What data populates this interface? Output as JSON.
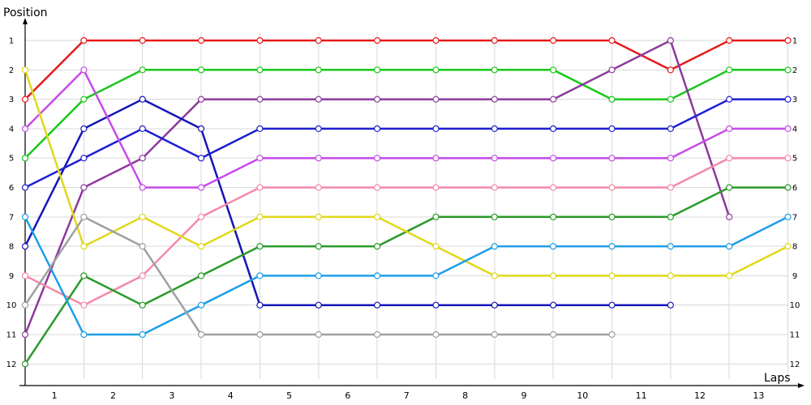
{
  "chart_data": {
    "type": "line",
    "ylabel": "Position",
    "xlabel": "Laps",
    "x_ticks": [
      "1",
      "2",
      "3",
      "4",
      "5",
      "6",
      "7",
      "8",
      "9",
      "10",
      "11",
      "12",
      "13"
    ],
    "y_ticks": [
      "1",
      "2",
      "3",
      "4",
      "5",
      "6",
      "7",
      "8",
      "9",
      "10",
      "11",
      "12"
    ],
    "ylim": [
      1,
      12
    ],
    "y_inverted": true,
    "grid": true,
    "series": [
      {
        "color": "#e8191a",
        "points": [
          [
            0,
            3
          ],
          [
            1,
            1
          ],
          [
            2,
            1
          ],
          [
            3,
            1
          ],
          [
            4,
            1
          ],
          [
            5,
            1
          ],
          [
            6,
            1
          ],
          [
            7,
            1
          ],
          [
            8,
            1
          ],
          [
            9,
            1
          ],
          [
            10,
            1
          ],
          [
            11,
            2
          ],
          [
            12,
            1
          ],
          [
            13,
            1
          ]
        ]
      },
      {
        "color": "#18c818",
        "points": [
          [
            0,
            5
          ],
          [
            1,
            3
          ],
          [
            2,
            2
          ],
          [
            3,
            2
          ],
          [
            4,
            2
          ],
          [
            5,
            2
          ],
          [
            6,
            2
          ],
          [
            7,
            2
          ],
          [
            8,
            2
          ],
          [
            9,
            2
          ],
          [
            10,
            3
          ],
          [
            11,
            3
          ],
          [
            12,
            2
          ],
          [
            13,
            2
          ]
        ]
      },
      {
        "color": "#8c3a9c",
        "points": [
          [
            0,
            11
          ],
          [
            1,
            6
          ],
          [
            2,
            5
          ],
          [
            3,
            3
          ],
          [
            4,
            3
          ],
          [
            5,
            3
          ],
          [
            6,
            3
          ],
          [
            7,
            3
          ],
          [
            8,
            3
          ],
          [
            9,
            3
          ],
          [
            10,
            2
          ],
          [
            11,
            1
          ],
          [
            12,
            7
          ]
        ]
      },
      {
        "color": "#1515b8",
        "points": [
          [
            0,
            8
          ],
          [
            1,
            4
          ],
          [
            2,
            3
          ],
          [
            3,
            4
          ],
          [
            4,
            10
          ],
          [
            5,
            10
          ],
          [
            6,
            10
          ],
          [
            7,
            10
          ],
          [
            8,
            10
          ],
          [
            9,
            10
          ],
          [
            10,
            10
          ],
          [
            11,
            10
          ]
        ]
      },
      {
        "color": "#1f1fd4",
        "points": [
          [
            0,
            6
          ],
          [
            1,
            5
          ],
          [
            2,
            4
          ],
          [
            3,
            5
          ],
          [
            4,
            4
          ],
          [
            5,
            4
          ],
          [
            6,
            4
          ],
          [
            7,
            4
          ],
          [
            8,
            4
          ],
          [
            9,
            4
          ],
          [
            10,
            4
          ],
          [
            11,
            4
          ],
          [
            12,
            3
          ],
          [
            13,
            3
          ]
        ]
      },
      {
        "color": "#c74ae8",
        "points": [
          [
            0,
            4
          ],
          [
            1,
            2
          ],
          [
            2,
            6
          ],
          [
            3,
            6
          ],
          [
            4,
            5
          ],
          [
            5,
            5
          ],
          [
            6,
            5
          ],
          [
            7,
            5
          ],
          [
            8,
            5
          ],
          [
            9,
            5
          ],
          [
            10,
            5
          ],
          [
            11,
            5
          ],
          [
            12,
            4
          ],
          [
            13,
            4
          ]
        ]
      },
      {
        "color": "#f48aa8",
        "points": [
          [
            0,
            9
          ],
          [
            1,
            10
          ],
          [
            2,
            9
          ],
          [
            3,
            7
          ],
          [
            4,
            6
          ],
          [
            5,
            6
          ],
          [
            6,
            6
          ],
          [
            7,
            6
          ],
          [
            8,
            6
          ],
          [
            9,
            6
          ],
          [
            10,
            6
          ],
          [
            11,
            6
          ],
          [
            12,
            5
          ],
          [
            13,
            5
          ]
        ]
      },
      {
        "color": "#2a9a2a",
        "points": [
          [
            0,
            12
          ],
          [
            1,
            9
          ],
          [
            2,
            10
          ],
          [
            3,
            9
          ],
          [
            4,
            8
          ],
          [
            5,
            8
          ],
          [
            6,
            8
          ],
          [
            7,
            7
          ],
          [
            8,
            7
          ],
          [
            9,
            7
          ],
          [
            10,
            7
          ],
          [
            11,
            7
          ],
          [
            12,
            6
          ],
          [
            13,
            6
          ]
        ]
      },
      {
        "color": "#e0d81a",
        "points": [
          [
            0,
            2
          ],
          [
            1,
            8
          ],
          [
            2,
            7
          ],
          [
            3,
            8
          ],
          [
            4,
            7
          ],
          [
            5,
            7
          ],
          [
            6,
            7
          ],
          [
            7,
            8
          ],
          [
            8,
            9
          ],
          [
            9,
            9
          ],
          [
            10,
            9
          ],
          [
            11,
            9
          ],
          [
            12,
            9
          ],
          [
            13,
            8
          ]
        ]
      },
      {
        "color": "#1e9ee8",
        "points": [
          [
            0,
            7
          ],
          [
            1,
            11
          ],
          [
            2,
            11
          ],
          [
            3,
            10
          ],
          [
            4,
            9
          ],
          [
            5,
            9
          ],
          [
            6,
            9
          ],
          [
            7,
            9
          ],
          [
            8,
            8
          ],
          [
            9,
            8
          ],
          [
            10,
            8
          ],
          [
            11,
            8
          ],
          [
            12,
            8
          ],
          [
            13,
            7
          ]
        ]
      },
      {
        "color": "#a0a0a0",
        "points": [
          [
            0,
            10
          ],
          [
            1,
            7
          ],
          [
            2,
            8
          ],
          [
            3,
            11
          ],
          [
            4,
            11
          ],
          [
            5,
            11
          ],
          [
            6,
            11
          ],
          [
            7,
            11
          ],
          [
            8,
            11
          ],
          [
            9,
            11
          ],
          [
            10,
            11
          ]
        ]
      }
    ]
  }
}
